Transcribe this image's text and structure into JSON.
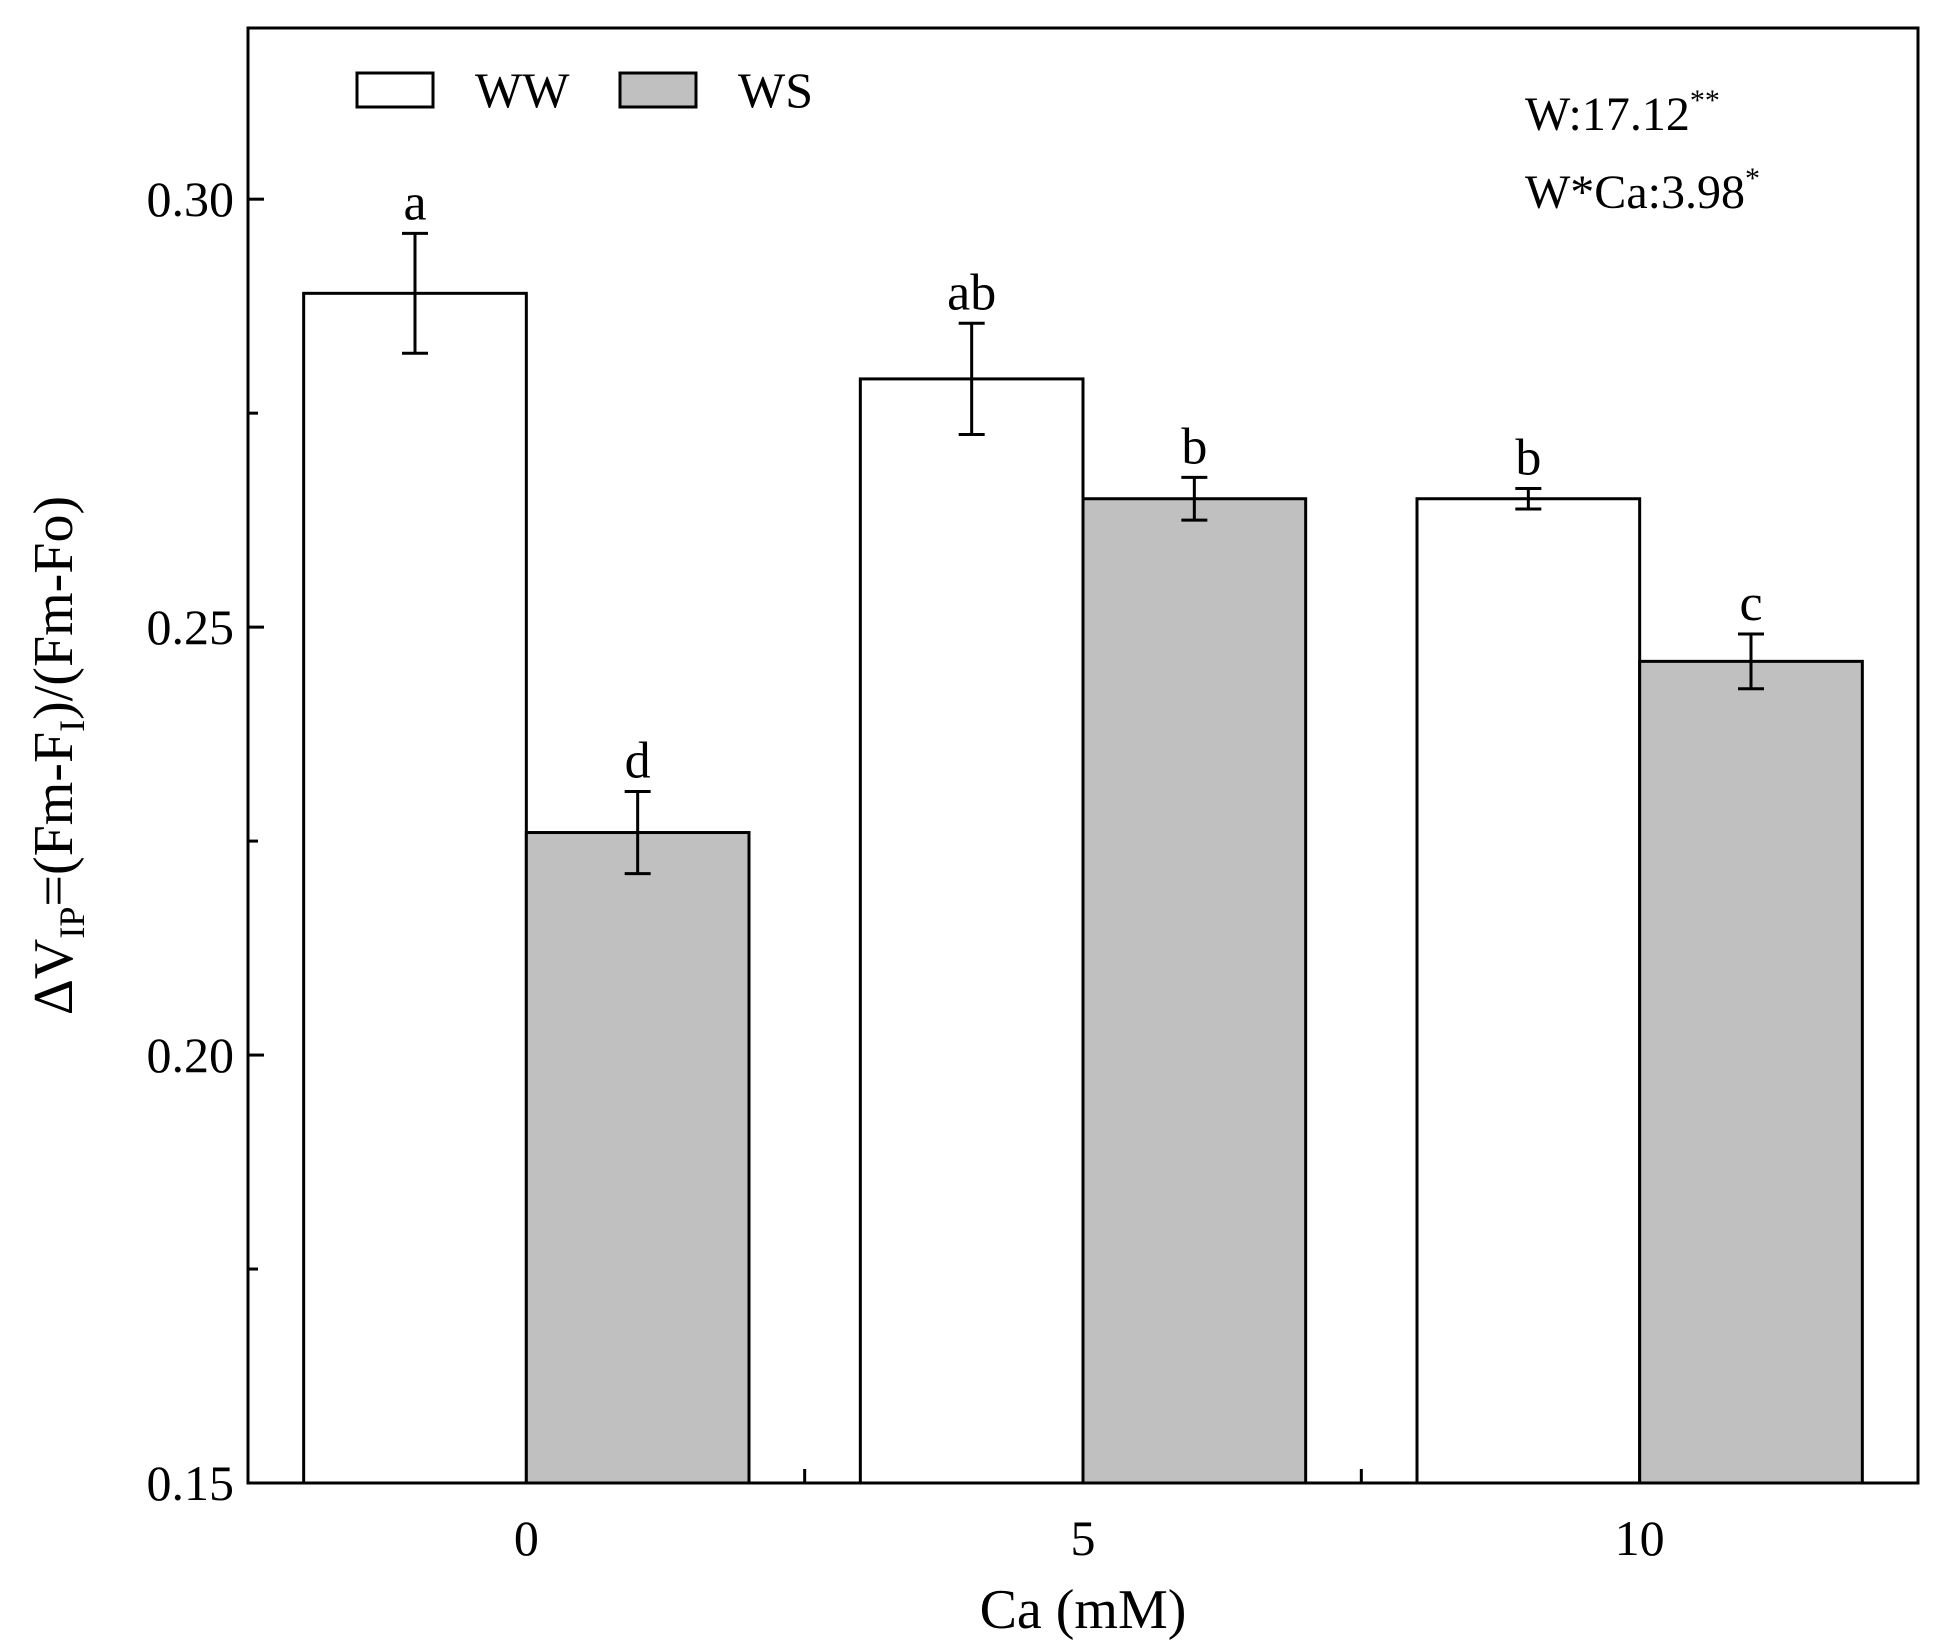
{
  "chart_data": {
    "type": "bar",
    "title": "",
    "xlabel": "Ca (mM)",
    "ylabel": {
      "prefix": "ΔV",
      "prefix_sub": "IP",
      "middle": "=(Fm-F",
      "middle_sub": "I",
      "suffix": ")/(Fm-Fo)"
    },
    "categories": [
      "0",
      "5",
      "10"
    ],
    "ylim": [
      0.15,
      0.32
    ],
    "yticks": [
      0.15,
      0.2,
      0.25,
      0.3
    ],
    "ytick_labels": [
      "0.15",
      "0.20",
      "0.25",
      "0.30"
    ],
    "legend": {
      "position": "top-left"
    },
    "series": [
      {
        "name": "WW",
        "color": "#ffffff",
        "values": [
          0.289,
          0.279,
          0.265
        ],
        "errors": [
          0.007,
          0.0065,
          0.0012
        ],
        "labels": [
          "a",
          "ab",
          "b"
        ]
      },
      {
        "name": "WS",
        "color": "#c0c0c0",
        "values": [
          0.226,
          0.265,
          0.246
        ],
        "errors": [
          0.0048,
          0.0025,
          0.0032
        ],
        "labels": [
          "d",
          "b",
          "c"
        ]
      }
    ],
    "annotations": [
      {
        "text": "W:17.12",
        "sup": "**"
      },
      {
        "text": "W*Ca:3.98",
        "sup": "*"
      }
    ]
  }
}
